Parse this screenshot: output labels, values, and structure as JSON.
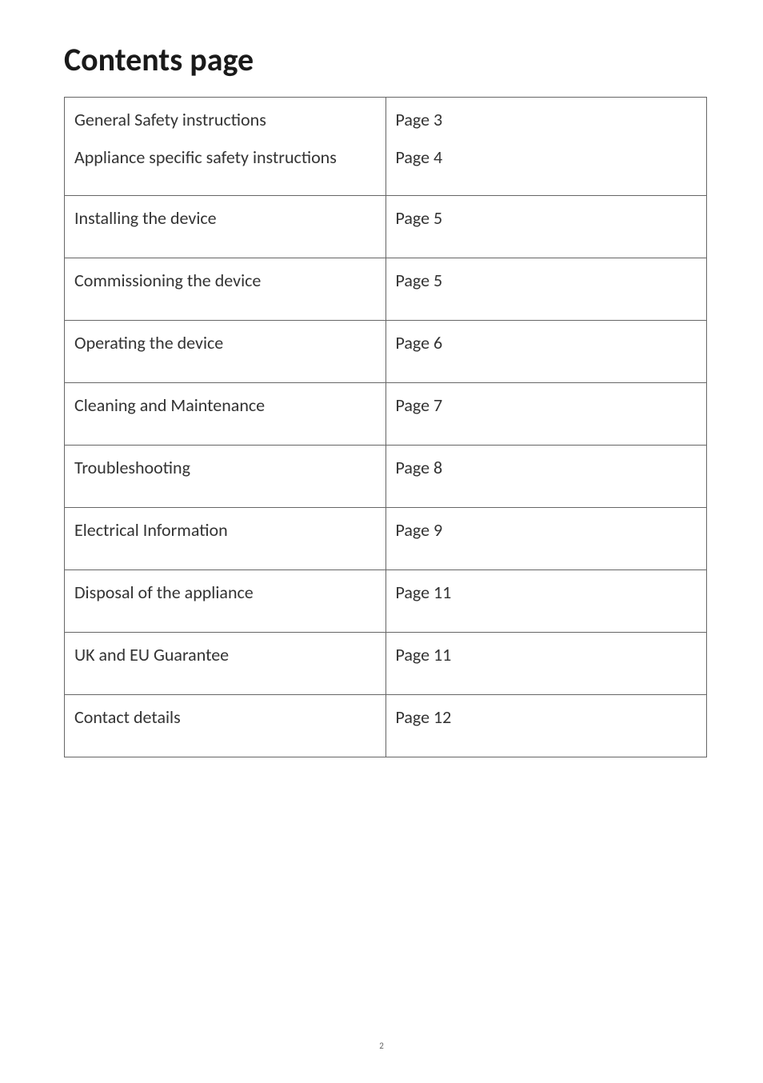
{
  "title": "Contents page",
  "table": {
    "columns": [
      "topic",
      "page_ref"
    ],
    "col_widths_percent": [
      50,
      50
    ],
    "border_color": "#666666",
    "text_color": "#333333",
    "background_color": "#ffffff",
    "font_size_pt": 17,
    "rows": [
      {
        "lines": [
          {
            "topic": "General Safety instructions",
            "page_ref": "Page 3"
          },
          {
            "topic": "Appliance specific safety instructions",
            "page_ref": "Page 4"
          }
        ]
      },
      {
        "topic": "Installing the device",
        "page_ref": "Page 5"
      },
      {
        "topic": "Commissioning the device",
        "page_ref": "Page 5"
      },
      {
        "topic": "Operating the device",
        "page_ref": "Page 6"
      },
      {
        "topic": "Cleaning and Maintenance",
        "page_ref": "Page 7"
      },
      {
        "topic": "Troubleshooting",
        "page_ref": "Page 8"
      },
      {
        "topic": "Electrical Information",
        "page_ref": "Page 9"
      },
      {
        "topic": "Disposal of the appliance",
        "page_ref": "Page 11"
      },
      {
        "topic": "UK and EU Guarantee",
        "page_ref": "Page 11"
      },
      {
        "topic": "Contact details",
        "page_ref": "Page 12"
      }
    ]
  },
  "page_number": "2",
  "title_font_size_pt": 30,
  "title_color": "#1a1a1a"
}
